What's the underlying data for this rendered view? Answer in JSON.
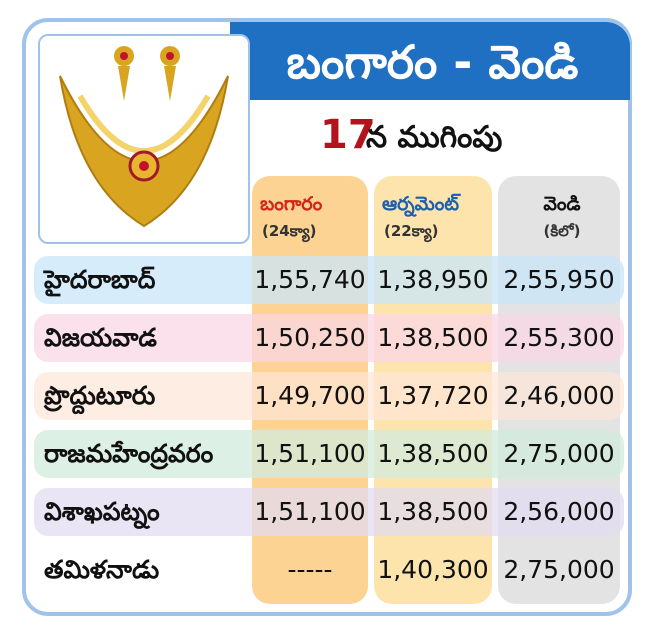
{
  "header": {
    "title": "బంగారం - వెండి",
    "date": "17",
    "date_suffix": "న ముగింపు"
  },
  "table": {
    "columns": [
      {
        "name": "బంగారం",
        "unit": "(24క్యా)"
      },
      {
        "name": "ఆర్నమెంట్",
        "unit": "(22క్యా)"
      },
      {
        "name": "వెండి",
        "unit": "(కిలో)"
      }
    ],
    "rows": [
      [
        "హైదరాబాద్",
        "1,55,740",
        "1,38,950",
        "2,55,950"
      ],
      [
        "విజయవాడ",
        "1,50,250",
        "1,38,500",
        "2,55,300"
      ],
      [
        "ప్రొద్దుటూరు",
        "1,49,700",
        "1,37,720",
        "2,46,000"
      ],
      [
        "రాజమహేంద్రవరం",
        "1,51,100",
        "1,38,500",
        "2,75,000"
      ],
      [
        "విశాఖపట్నం",
        "1,51,100",
        "1,38,500",
        "2,56,000"
      ],
      [
        "తమిళనాడు",
        "-----",
        "1,40,300",
        "2,75,000"
      ]
    ]
  }
}
